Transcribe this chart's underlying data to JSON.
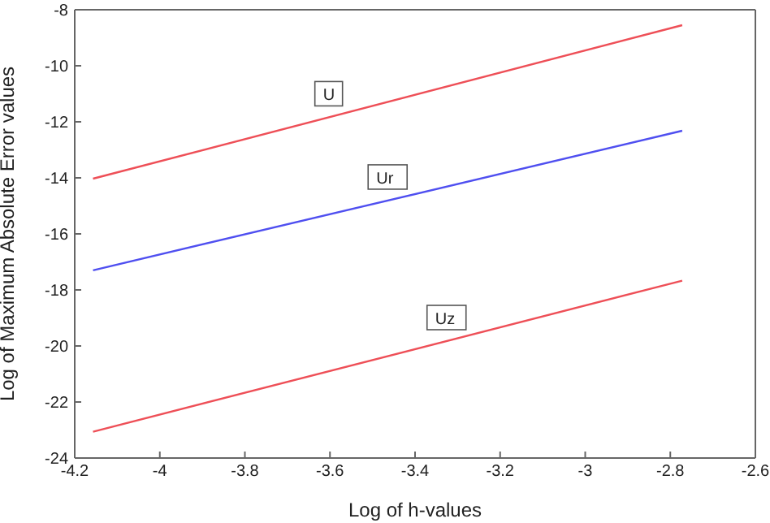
{
  "chart_data": {
    "type": "line",
    "xlabel": "Log of h-values",
    "ylabel": "Log of Maximum Absolute Error values",
    "x": [
      -4.157,
      -2.772
    ],
    "xlim": [
      -4.2,
      -2.6
    ],
    "xticks": [
      -4.2,
      -4,
      -3.8,
      -3.6,
      -3.4,
      -3.2,
      -3,
      -2.8,
      -2.6
    ],
    "ylim": [
      -24,
      -8
    ],
    "yticks": [
      -24,
      -22,
      -20,
      -18,
      -16,
      -14,
      -12,
      -10,
      -8
    ],
    "legend": false,
    "marker": "none",
    "line_style": "solid",
    "series": [
      {
        "name": "U",
        "color": "#ee4f57",
        "values": [
          -14.03,
          -8.55
        ]
      },
      {
        "name": "Ur",
        "color": "#4f4ff0",
        "values": [
          -17.3,
          -12.32
        ]
      },
      {
        "name": "Uz",
        "color": "#ee4f57",
        "values": [
          -23.06,
          -17.67
        ]
      }
    ]
  }
}
